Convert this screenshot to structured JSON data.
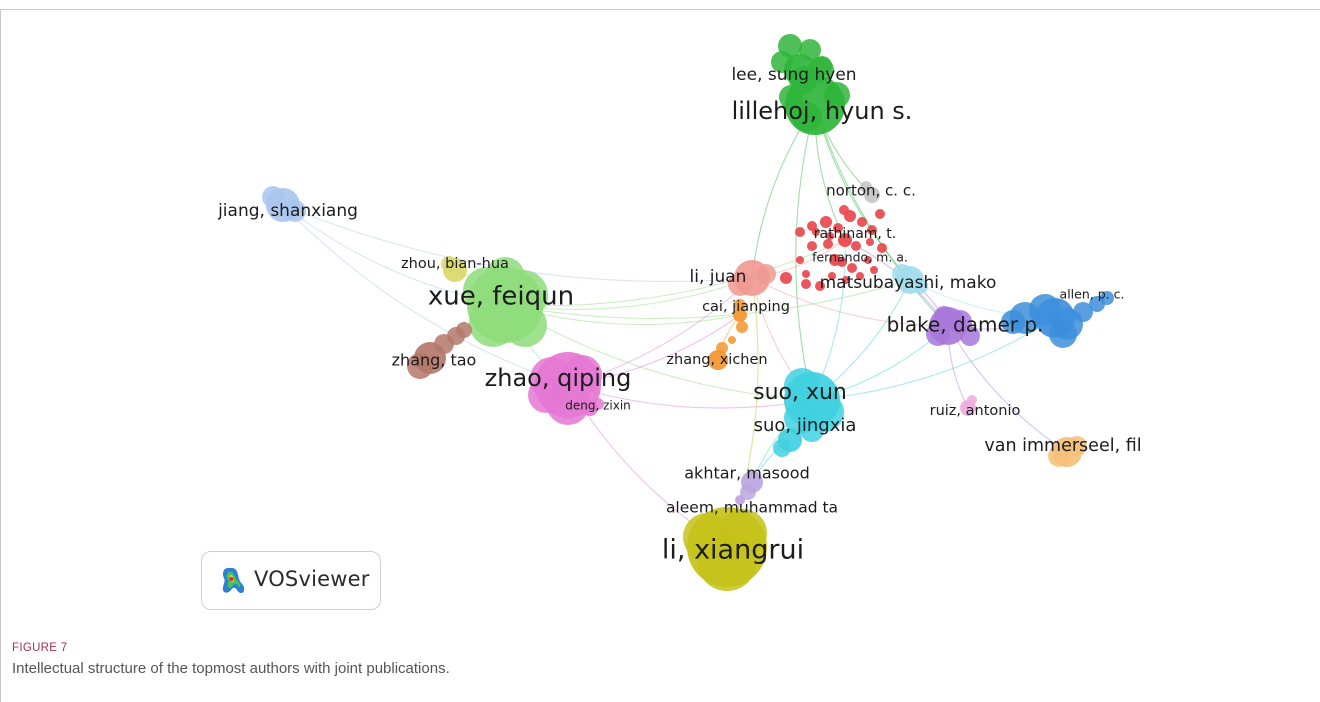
{
  "figure": {
    "label": "FIGURE 7",
    "caption": "Intellectual structure of the topmost authors with joint publications."
  },
  "software_logo": {
    "text": "VOSviewer",
    "icon": "vosviewer-logo-icon"
  },
  "network": {
    "type": "co-authorship network",
    "nodes": [
      {
        "id": "lillehoj",
        "label": "lillehoj, hyun s.",
        "cluster": "green"
      },
      {
        "id": "lee",
        "label": "lee, sung hyen",
        "cluster": "green"
      },
      {
        "id": "norton",
        "label": "norton, c. c.",
        "cluster": "gray"
      },
      {
        "id": "jiang",
        "label": "jiang, shanxiang",
        "cluster": "lightblue"
      },
      {
        "id": "rathinam",
        "label": "rathinam, t.",
        "cluster": "red"
      },
      {
        "id": "fernando",
        "label": "fernando, m. a.",
        "cluster": "red"
      },
      {
        "id": "zhoubh",
        "label": "zhou, bian-hua",
        "cluster": "yellow"
      },
      {
        "id": "xue",
        "label": "xue, feiqun",
        "cluster": "lightgreen"
      },
      {
        "id": "lijuan",
        "label": "li, juan",
        "cluster": "salmon"
      },
      {
        "id": "matsubayashi",
        "label": "matsubayashi, mako",
        "cluster": "cyanlight"
      },
      {
        "id": "allen",
        "label": "allen, p. c.",
        "cluster": "blue"
      },
      {
        "id": "cai",
        "label": "cai, jianping",
        "cluster": "orange"
      },
      {
        "id": "blake",
        "label": "blake, damer p.",
        "cluster": "purple"
      },
      {
        "id": "zhangtao",
        "label": "zhang, tao",
        "cluster": "brown"
      },
      {
        "id": "zhangxc",
        "label": "zhang, xichen",
        "cluster": "orange"
      },
      {
        "id": "zhao",
        "label": "zhao, qiping",
        "cluster": "pink"
      },
      {
        "id": "deng",
        "label": "deng, zixin",
        "cluster": "pink"
      },
      {
        "id": "suoxun",
        "label": "suo, xun",
        "cluster": "cyan"
      },
      {
        "id": "ruiz",
        "label": "ruiz, antonio",
        "cluster": "lightpink"
      },
      {
        "id": "suojx",
        "label": "suo, jingxia",
        "cluster": "cyan"
      },
      {
        "id": "vanimm",
        "label": "van immerseel, fil",
        "cluster": "peach"
      },
      {
        "id": "akhtar",
        "label": "akhtar, masood",
        "cluster": "lavender"
      },
      {
        "id": "aleem",
        "label": "aleem, muhammad ta",
        "cluster": "lavender"
      },
      {
        "id": "lixr",
        "label": "li, xiangrui",
        "cluster": "olive"
      }
    ],
    "links": [
      [
        "lillehoj",
        "lijuan"
      ],
      [
        "lillehoj",
        "blake"
      ],
      [
        "lillehoj",
        "matsubayashi"
      ],
      [
        "lillehoj",
        "suoxun"
      ],
      [
        "lillehoj",
        "rathinam"
      ],
      [
        "lillehoj",
        "norton"
      ],
      [
        "jiang",
        "xue"
      ],
      [
        "jiang",
        "zhao"
      ],
      [
        "jiang",
        "lijuan"
      ],
      [
        "xue",
        "lijuan"
      ],
      [
        "xue",
        "rathinam"
      ],
      [
        "xue",
        "zhao"
      ],
      [
        "xue",
        "zhangtao"
      ],
      [
        "xue",
        "zhoubh"
      ],
      [
        "xue",
        "suoxun"
      ],
      [
        "xue",
        "cai"
      ],
      [
        "xue",
        "matsubayashi"
      ],
      [
        "zhao",
        "lijuan"
      ],
      [
        "zhao",
        "lixr"
      ],
      [
        "zhao",
        "suoxun"
      ],
      [
        "zhao",
        "cai"
      ],
      [
        "lijuan",
        "rathinam"
      ],
      [
        "lijuan",
        "suoxun"
      ],
      [
        "lijuan",
        "blake"
      ],
      [
        "suoxun",
        "blake"
      ],
      [
        "suoxun",
        "matsubayashi"
      ],
      [
        "suoxun",
        "allen"
      ],
      [
        "suoxun",
        "akhtar"
      ],
      [
        "suoxun",
        "rathinam"
      ],
      [
        "suojx",
        "akhtar"
      ],
      [
        "blake",
        "allen"
      ],
      [
        "blake",
        "matsubayashi"
      ],
      [
        "blake",
        "ruiz"
      ],
      [
        "blake",
        "vanimm"
      ],
      [
        "blake",
        "rathinam"
      ],
      [
        "akhtar",
        "lixr"
      ],
      [
        "lixr",
        "lijuan"
      ],
      [
        "matsubayashi",
        "allen"
      ],
      [
        "cai",
        "zhangxc"
      ]
    ]
  }
}
